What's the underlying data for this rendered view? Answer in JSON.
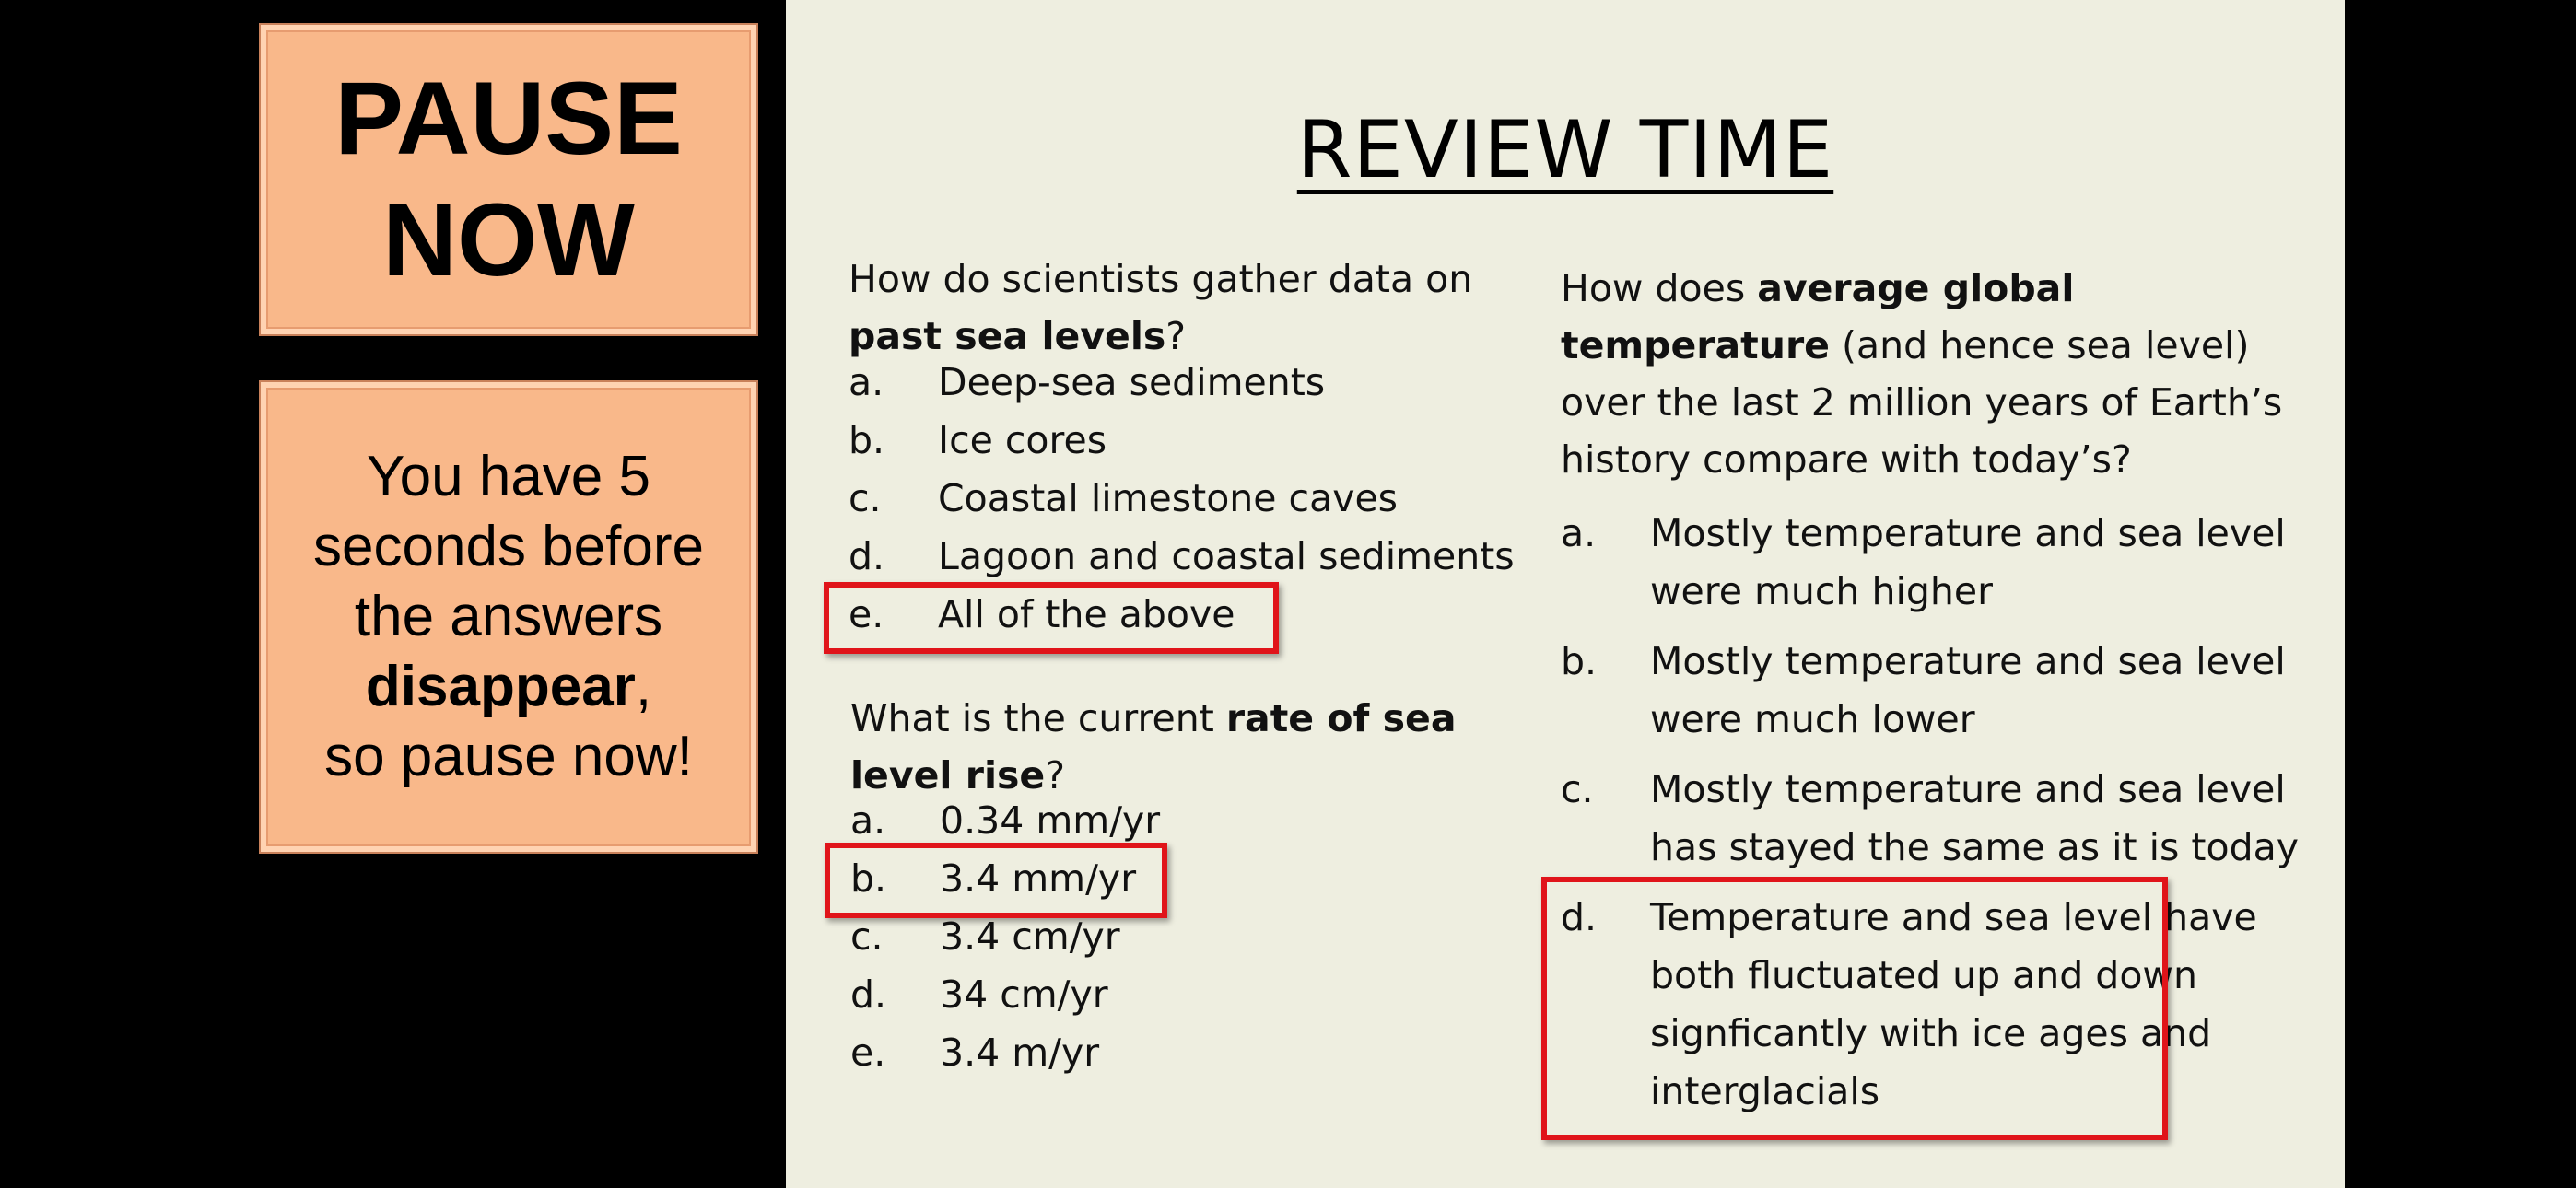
{
  "pause_sign": {
    "line1": "PAUSE",
    "line2": "NOW"
  },
  "notice_sign": {
    "line1": "You have 5",
    "line2": "seconds before",
    "line3": "the answers",
    "line4_bold": "disappear",
    "line4_rest": ",",
    "line5": "so pause now!"
  },
  "slide": {
    "title": "REVIEW TIME",
    "q1": {
      "prefix": "How do scientists gather data on",
      "bold": "past sea levels",
      "suffix": "?",
      "options": [
        {
          "key": "a.",
          "text": "Deep-sea sediments"
        },
        {
          "key": "b.",
          "text": "Ice cores"
        },
        {
          "key": "c.",
          "text": "Coastal limestone caves"
        },
        {
          "key": "d.",
          "text": "Lagoon and coastal sediments"
        },
        {
          "key": "e.",
          "text": "All of the above"
        }
      ],
      "highlighted": "e."
    },
    "q2": {
      "prefix": "What is the current",
      "bold": "rate of sea level rise",
      "suffix": "?",
      "options": [
        {
          "key": "a.",
          "text": "0.34 mm/yr"
        },
        {
          "key": "b.",
          "text": "3.4 mm/yr"
        },
        {
          "key": "c.",
          "text": "3.4 cm/yr"
        },
        {
          "key": "d.",
          "text": "34 cm/yr"
        },
        {
          "key": "e.",
          "text": "3.4 m/yr"
        }
      ],
      "highlighted": "b."
    },
    "q3": {
      "prefix": "How does",
      "bold": "average global temperature",
      "suffix": "(and hence sea level) over the last 2 million years of Earth’s history compare with today’s?",
      "options": [
        {
          "key": "a.",
          "text": "Mostly temperature and sea level were much higher"
        },
        {
          "key": "b.",
          "text": "Mostly temperature and sea level were much lower"
        },
        {
          "key": "c.",
          "text": "Mostly temperature and sea level has stayed the same as it is today"
        },
        {
          "key": "d.",
          "text": "Temperature and sea level have both fluctuated up and down signficantly with ice ages and interglacials"
        }
      ],
      "highlighted": "d."
    }
  },
  "colors": {
    "background": "#000000",
    "slide": "#eeeee0",
    "sign": "#f9b88a",
    "highlight": "#e0141a"
  }
}
